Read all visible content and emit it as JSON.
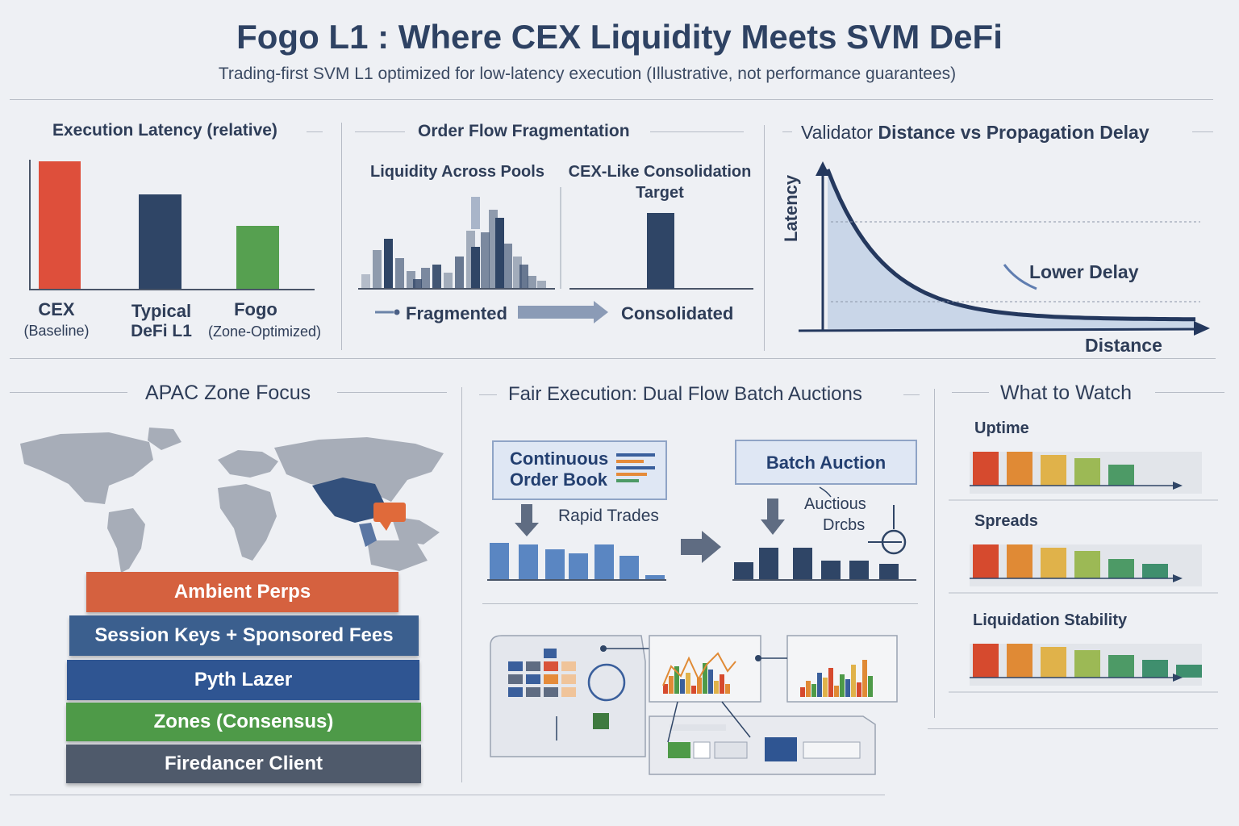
{
  "header": {
    "title": "Fogo L1 : Where CEX Liquidity Meets SVM DeFi",
    "subtitle": "Trading-first SVM L1 optimized for low-latency execution (Illustrative, not performance guarantees)"
  },
  "latency_panel": {
    "title": "Execution Latency (relative)",
    "bars": [
      {
        "label": "CEX",
        "sublabel": "(Baseline)",
        "color": "#de4f3b"
      },
      {
        "label": "Typical",
        "sublabel": "DeFi L1",
        "color": "#2f4566"
      },
      {
        "label": "Fogo",
        "sublabel": "(Zone-Optimized)",
        "color": "#56a050"
      }
    ]
  },
  "fragmentation_panel": {
    "title": "Order Flow Fragmentation",
    "left_title": "Liquidity Across Pools",
    "right_title_line1": "CEX-Like Consolidation",
    "right_title_line2": "Target",
    "left_caption": "Fragmented",
    "right_caption": "Consolidated"
  },
  "validator_panel": {
    "title_prefix": "Validator ",
    "title_bold": "Distance vs Propagation Delay",
    "y_label": "Latency",
    "x_label": "Distance",
    "annotation": "Lower Delay"
  },
  "apac_panel": {
    "title": "APAC Zone Focus",
    "layers": [
      {
        "label": "Ambient Perps",
        "color": "#d5613f"
      },
      {
        "label": "Session Keys + Sponsored Fees",
        "color": "#3b5f8e"
      },
      {
        "label": "Pyth Lazer",
        "color": "#2f5592"
      },
      {
        "label": "Zones (Consensus)",
        "color": "#4e9a48"
      },
      {
        "label": "Firedancer Client",
        "color": "#4f5a6b"
      }
    ]
  },
  "auction_panel": {
    "title": "Fair Execution: Dual Flow Batch Auctions",
    "continuous_line1": "Continuous",
    "continuous_line2": "Order Book",
    "batch_label": "Batch Auction",
    "rapid_label": "Rapid Trades",
    "auction_line1": "Auctious",
    "auction_line2": "Drcbs"
  },
  "watch_panel": {
    "title": "What to Watch",
    "items": [
      "Uptime",
      "Spreads",
      "Liquidation Stability"
    ]
  },
  "colors": {
    "heat": [
      "#d64a2e",
      "#e08a35",
      "#e0b24a",
      "#9cb955",
      "#4d9a66"
    ],
    "navy": "#2f4566",
    "blue": "#5a86c2"
  }
}
